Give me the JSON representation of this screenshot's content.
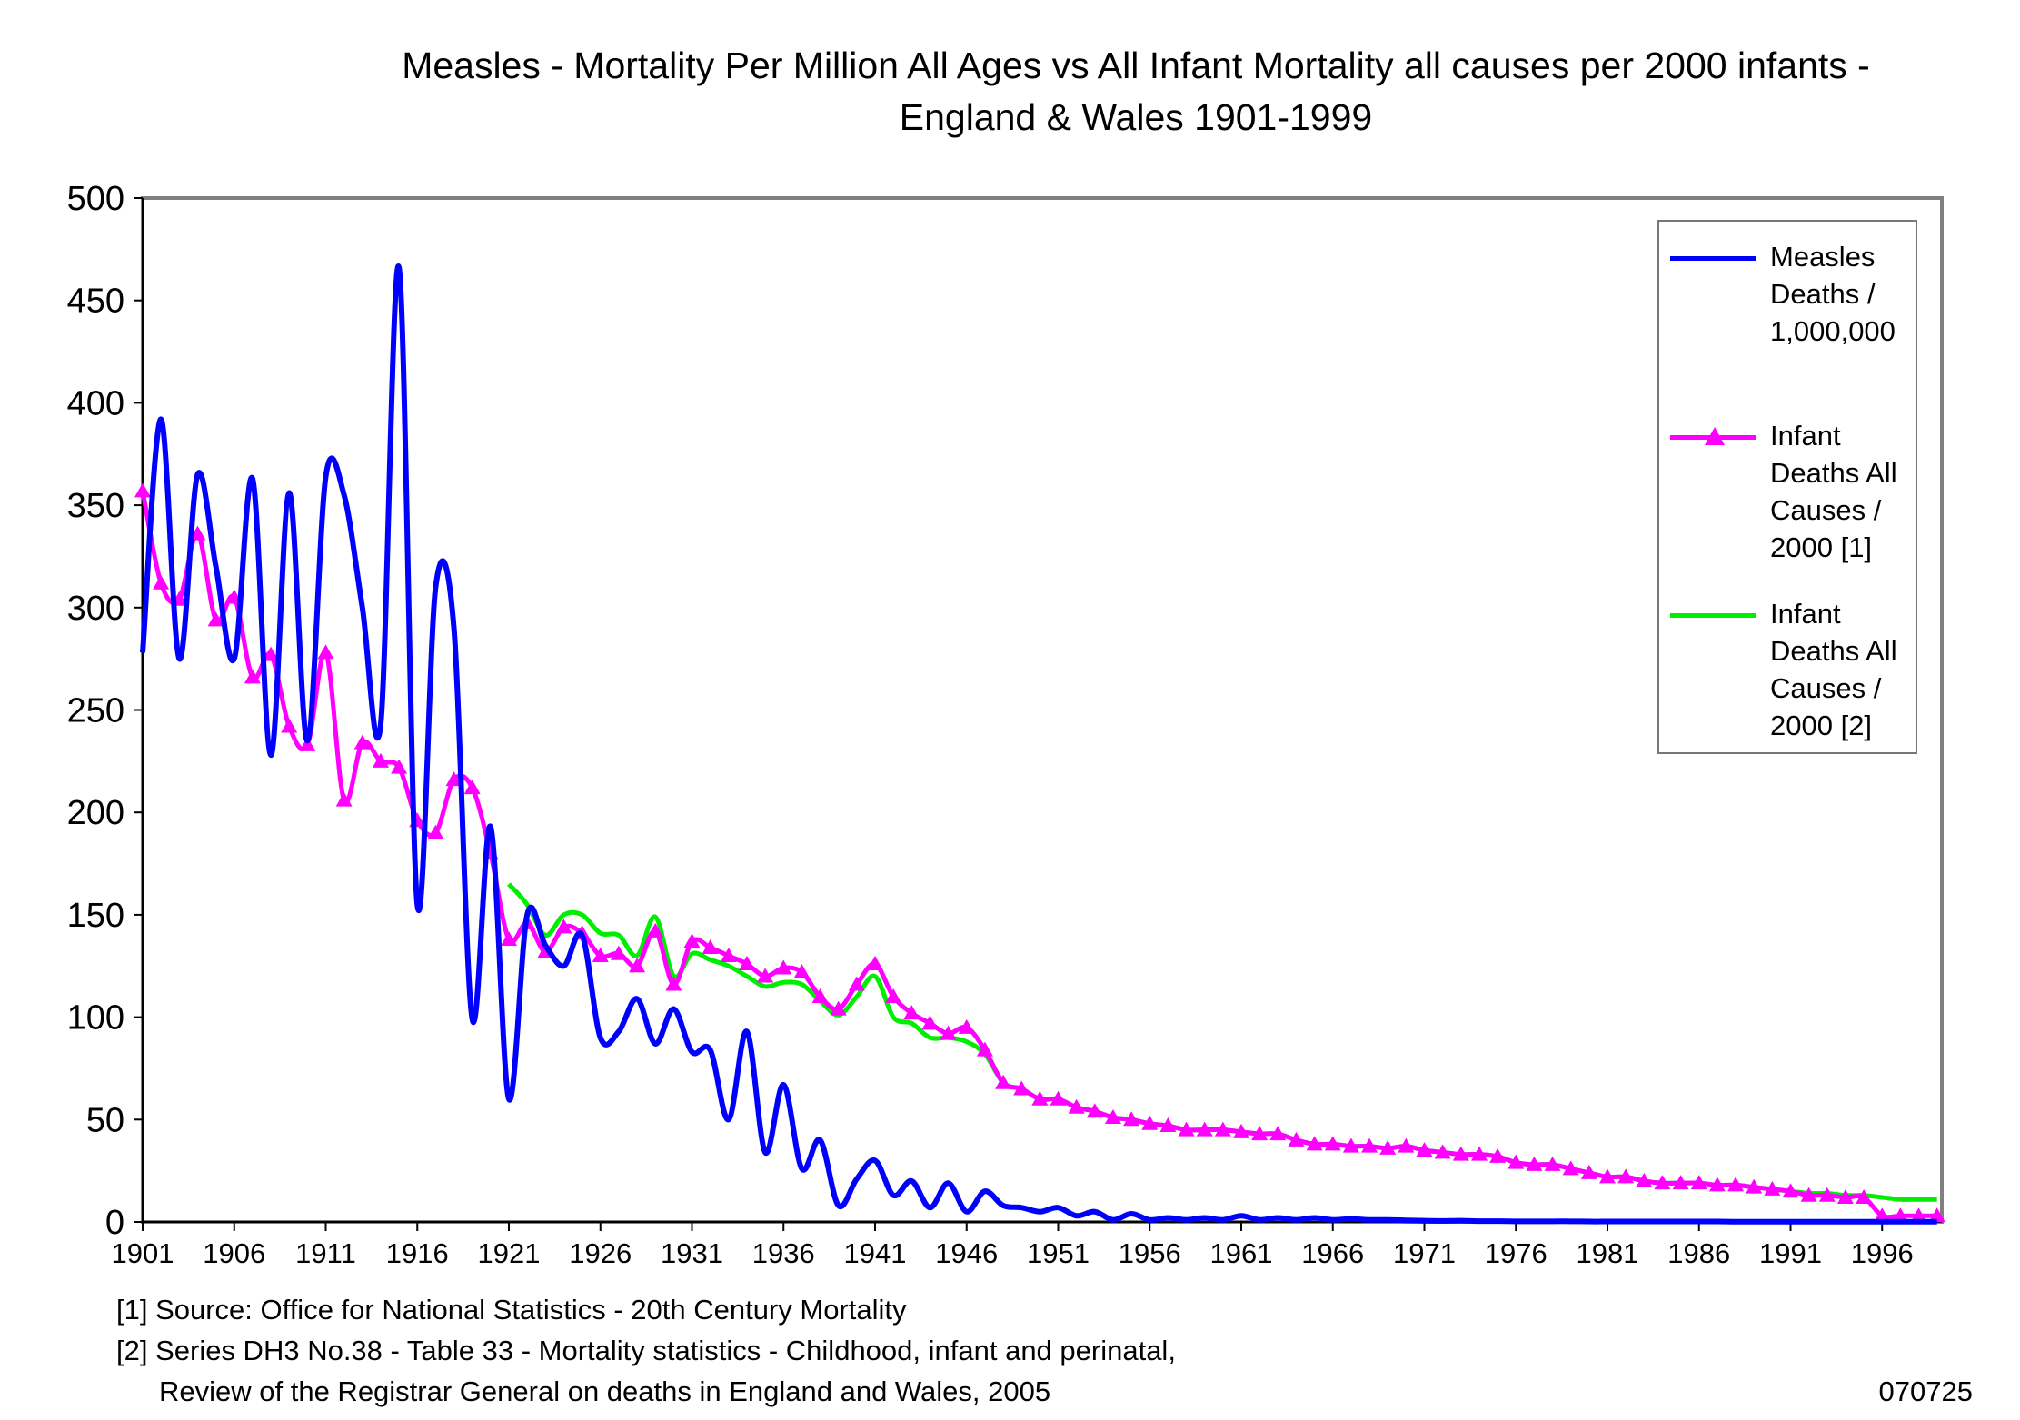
{
  "chart_data": {
    "type": "line",
    "title": "Measles - Mortality Per Million All Ages vs All Infant Mortality all causes per 2000 infants - England & Wales 1901-1999",
    "title_lines": [
      "Measles - Mortality Per Million All Ages vs All Infant Mortality all causes per 2000 infants -",
      "England & Wales 1901-1999"
    ],
    "xlim": [
      1901,
      1999
    ],
    "ylim": [
      0,
      500
    ],
    "y_ticks": [
      "0",
      "50",
      "100",
      "150",
      "200",
      "250",
      "300",
      "350",
      "400",
      "450",
      "500"
    ],
    "x_ticks": [
      "1901",
      "1906",
      "1911",
      "1916",
      "1921",
      "1926",
      "1931",
      "1936",
      "1941",
      "1946",
      "1951",
      "1956",
      "1961",
      "1966",
      "1971",
      "1976",
      "1981",
      "1986",
      "1991",
      "1996"
    ],
    "grid": false,
    "legend_placement": "top-right",
    "series": [
      {
        "name": "Measles Deaths / 1,000,000",
        "name_lines": [
          "Measles",
          "Deaths /",
          "1,000,000"
        ],
        "color": "#0000ff",
        "marker": "none",
        "start_year": 1901,
        "values": [
          278,
          392,
          275,
          365,
          320,
          275,
          363,
          228,
          356,
          235,
          364,
          355,
          300,
          243,
          466,
          155,
          310,
          290,
          99,
          193,
          60,
          150,
          135,
          125,
          140,
          90,
          93,
          109,
          87,
          104,
          83,
          84,
          50,
          93,
          34,
          67,
          26,
          40,
          8,
          21,
          30,
          13,
          20,
          7,
          19,
          5,
          15,
          8,
          7,
          5,
          7,
          3,
          5,
          1,
          4,
          1,
          2,
          1,
          2,
          1,
          3,
          1,
          2,
          1,
          2,
          1,
          1.5,
          1,
          1,
          0.8,
          0.6,
          0.5,
          0.6,
          0.4,
          0.4,
          0.3,
          0.3,
          0.3,
          0.3,
          0.2,
          0.2,
          0.2,
          0.2,
          0.2,
          0.2,
          0.2,
          0.2,
          0.1,
          0.1,
          0.1,
          0.1,
          0.1,
          0.1,
          0.1,
          0.1,
          0.1,
          0.1,
          0.1,
          0.1
        ]
      },
      {
        "name": "Infant Deaths All Causes / 2000 [1]",
        "name_lines": [
          "Infant",
          "Deaths All",
          "Causes /",
          "2000 [1]"
        ],
        "color": "#ff00ff",
        "marker": "triangle",
        "start_year": 1901,
        "values": [
          357,
          312,
          304,
          336,
          294,
          305,
          266,
          277,
          242,
          233,
          278,
          206,
          234,
          225,
          222,
          196,
          190,
          216,
          212,
          180,
          138,
          146,
          132,
          144,
          141,
          130,
          131,
          125,
          142,
          116,
          137,
          134,
          130,
          126,
          120,
          124,
          122,
          110,
          104,
          116,
          126,
          110,
          102,
          97,
          92,
          95,
          84,
          68,
          65,
          60,
          60,
          56,
          54,
          51,
          50,
          48,
          47,
          45,
          45,
          45,
          44,
          43,
          43,
          40,
          38,
          38,
          37,
          37,
          36,
          37,
          35,
          34,
          33,
          33,
          32,
          29,
          28,
          28,
          26,
          24,
          22,
          22,
          20,
          19,
          19,
          19,
          18,
          18,
          17,
          16,
          15,
          13,
          13,
          12,
          12,
          3,
          3,
          3,
          3
        ]
      },
      {
        "name": "Infant Deaths All Causes / 2000 [2]",
        "name_lines": [
          "Infant",
          "Deaths All",
          "Causes /",
          "2000 [2]"
        ],
        "color": "#00ee00",
        "marker": "none",
        "start_year": 1921,
        "values": [
          165,
          155,
          140,
          150,
          150,
          141,
          140,
          130,
          149,
          120,
          131,
          128,
          125,
          120,
          115,
          117,
          116,
          108,
          101,
          110,
          120,
          100,
          97,
          90,
          90,
          88,
          82,
          68,
          65,
          60,
          60,
          56,
          54,
          51,
          50,
          48,
          47,
          45,
          45,
          45,
          44,
          43,
          43,
          40,
          38,
          38,
          37,
          37,
          36,
          37,
          35,
          34,
          33,
          33,
          32,
          29,
          28,
          28,
          26,
          24,
          22,
          22,
          20,
          19,
          19,
          19,
          18,
          18,
          17,
          16,
          15,
          14,
          14,
          13,
          13,
          12,
          11,
          11,
          11
        ]
      }
    ]
  },
  "footnotes": [
    "[1] Source: Office for National Statistics - 20th Century Mortality",
    "[2] Series DH3 No.38 - Table 33 - Mortality statistics - Childhood, infant and perinatal,",
    "Review of the Registrar General on deaths in England and Wales, 2005"
  ],
  "code": "070725"
}
